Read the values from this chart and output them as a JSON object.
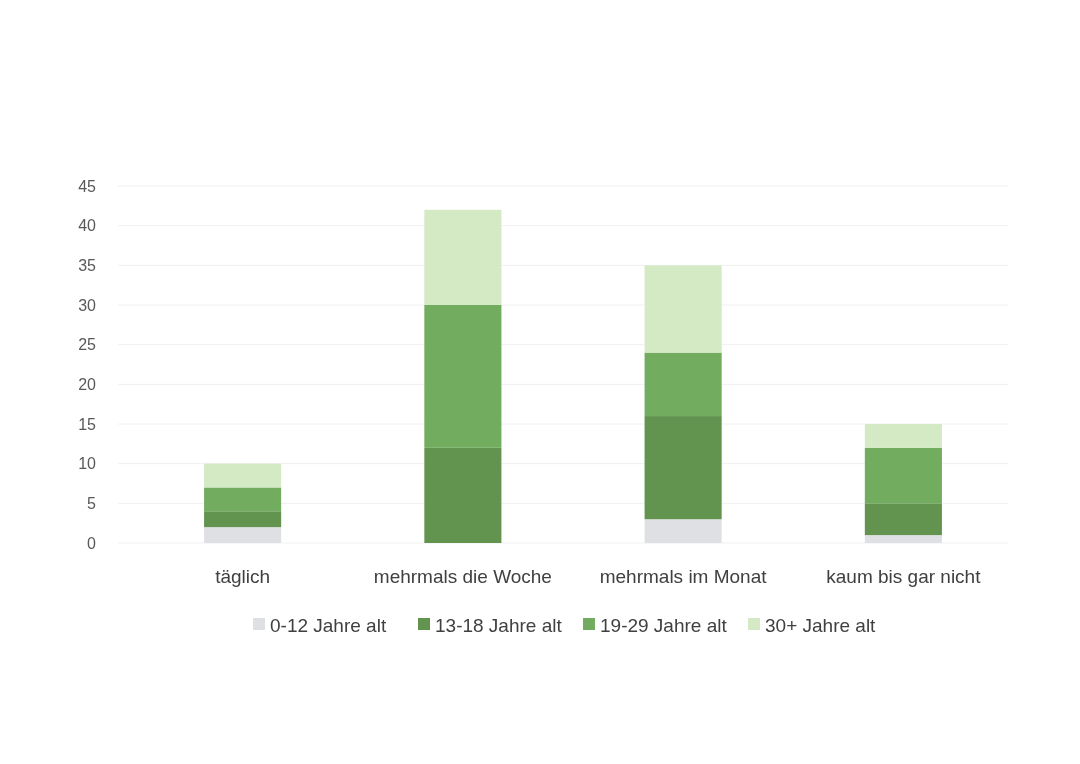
{
  "chart_data": {
    "type": "bar",
    "stacked": true,
    "categories": [
      "täglich",
      "mehrmals die Woche",
      "mehrmals im Monat",
      "kaum bis gar nicht"
    ],
    "series": [
      {
        "name": "0-12 Jahre alt",
        "color": "#dfe0e3",
        "values": [
          2,
          0,
          3,
          1
        ]
      },
      {
        "name": "13-18 Jahre alt",
        "color": "#62934f",
        "values": [
          2,
          12,
          13,
          4
        ]
      },
      {
        "name": "19-29 Jahre alt",
        "color": "#72ad5f",
        "values": [
          3,
          18,
          8,
          7
        ]
      },
      {
        "name": "30+ Jahre alt",
        "color": "#d3eac4",
        "values": [
          3,
          12,
          11,
          3
        ]
      }
    ],
    "ylim": [
      0,
      45
    ],
    "yticks": [
      0,
      5,
      10,
      15,
      20,
      25,
      30,
      35,
      40,
      45
    ],
    "grid": "y",
    "legend": "bottom"
  }
}
